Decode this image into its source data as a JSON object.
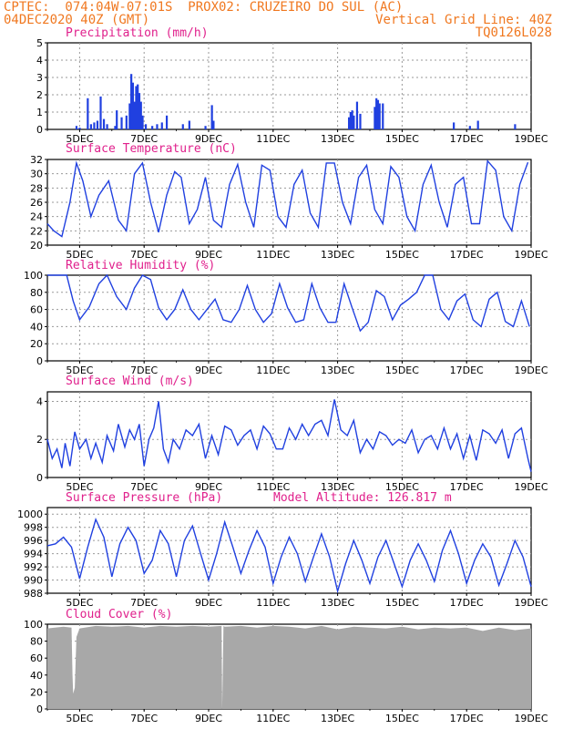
{
  "header": {
    "line1_left": "CPTEC:  074:04W-07:01S  PROX02: CRUZEIRO DO SUL (AC)",
    "line2_left": "04DEC2020 40Z (GMT)",
    "line2_right": "Vertical Grid Line: 40Z",
    "line3_right": "TQ0126L028"
  },
  "model_altitude": "Model Altitude: 126.817 m",
  "colors": {
    "line": "#2040e0",
    "title": "#e0208c",
    "header": "#f07820",
    "cloud": "#a8a8a8",
    "grid": "#9a9a9a"
  },
  "chart_data": [
    {
      "type": "bar",
      "title": "Precipitation (mm/h)",
      "ylim": [
        0,
        5
      ],
      "yticks": [
        "0",
        "1",
        "2",
        "3",
        "4",
        "5"
      ],
      "xticks": [
        "5DEC",
        "7DEC",
        "9DEC",
        "11DEC",
        "13DEC",
        "15DEC",
        "17DEC",
        "19DEC"
      ],
      "x_start_day": 4.0,
      "x_end_day": 19.0,
      "bars": [
        {
          "x": 4.9,
          "y": 0.2
        },
        {
          "x": 5.0,
          "y": 0.1
        },
        {
          "x": 5.25,
          "y": 1.8
        },
        {
          "x": 5.35,
          "y": 0.3
        },
        {
          "x": 5.45,
          "y": 0.4
        },
        {
          "x": 5.55,
          "y": 0.5
        },
        {
          "x": 5.65,
          "y": 1.9
        },
        {
          "x": 5.75,
          "y": 0.6
        },
        {
          "x": 5.85,
          "y": 0.3
        },
        {
          "x": 6.1,
          "y": 0.2
        },
        {
          "x": 6.15,
          "y": 1.1
        },
        {
          "x": 6.3,
          "y": 0.7
        },
        {
          "x": 6.45,
          "y": 0.8
        },
        {
          "x": 6.55,
          "y": 1.5
        },
        {
          "x": 6.6,
          "y": 3.2
        },
        {
          "x": 6.65,
          "y": 2.7
        },
        {
          "x": 6.7,
          "y": 1.6
        },
        {
          "x": 6.75,
          "y": 2.5
        },
        {
          "x": 6.8,
          "y": 2.6
        },
        {
          "x": 6.85,
          "y": 2.1
        },
        {
          "x": 6.9,
          "y": 1.6
        },
        {
          "x": 6.95,
          "y": 0.8
        },
        {
          "x": 7.05,
          "y": 0.3
        },
        {
          "x": 7.25,
          "y": 0.2
        },
        {
          "x": 7.4,
          "y": 0.3
        },
        {
          "x": 7.55,
          "y": 0.4
        },
        {
          "x": 7.7,
          "y": 0.8
        },
        {
          "x": 8.2,
          "y": 0.3
        },
        {
          "x": 8.4,
          "y": 0.5
        },
        {
          "x": 8.9,
          "y": 0.2
        },
        {
          "x": 9.1,
          "y": 1.4
        },
        {
          "x": 9.15,
          "y": 0.5
        },
        {
          "x": 13.35,
          "y": 0.7
        },
        {
          "x": 13.4,
          "y": 1.0
        },
        {
          "x": 13.45,
          "y": 1.1
        },
        {
          "x": 13.5,
          "y": 0.8
        },
        {
          "x": 13.6,
          "y": 1.6
        },
        {
          "x": 13.7,
          "y": 0.9
        },
        {
          "x": 14.15,
          "y": 1.3
        },
        {
          "x": 14.2,
          "y": 1.8
        },
        {
          "x": 14.25,
          "y": 1.7
        },
        {
          "x": 14.3,
          "y": 1.5
        },
        {
          "x": 14.4,
          "y": 1.5
        },
        {
          "x": 16.6,
          "y": 0.4
        },
        {
          "x": 17.1,
          "y": 0.2
        },
        {
          "x": 17.35,
          "y": 0.5
        },
        {
          "x": 18.5,
          "y": 0.3
        }
      ]
    },
    {
      "type": "line",
      "title": "Surface Temperature (nC)",
      "ylim": [
        20,
        32
      ],
      "yticks": [
        "20",
        "22",
        "24",
        "26",
        "28",
        "30",
        "32"
      ],
      "xticks": [
        "5DEC",
        "7DEC",
        "9DEC",
        "11DEC",
        "13DEC",
        "15DEC",
        "17DEC",
        "19DEC"
      ],
      "x_start_day": 4.0,
      "x_end_day": 19.0,
      "x": [
        4.0,
        4.2,
        4.45,
        4.7,
        4.9,
        5.1,
        5.35,
        5.6,
        5.9,
        6.2,
        6.45,
        6.7,
        6.95,
        7.2,
        7.45,
        7.7,
        7.95,
        8.15,
        8.4,
        8.65,
        8.9,
        9.15,
        9.4,
        9.65,
        9.9,
        10.15,
        10.4,
        10.65,
        10.9,
        11.15,
        11.4,
        11.65,
        11.9,
        12.15,
        12.4,
        12.65,
        12.9,
        13.15,
        13.4,
        13.65,
        13.9,
        14.15,
        14.4,
        14.65,
        14.9,
        15.15,
        15.4,
        15.65,
        15.9,
        16.15,
        16.4,
        16.65,
        16.9,
        17.15,
        17.4,
        17.65,
        17.9,
        18.15,
        18.4,
        18.65,
        18.9
      ],
      "y": [
        23.0,
        22.0,
        21.2,
        26.0,
        31.5,
        29.0,
        24.0,
        27.0,
        29.0,
        23.5,
        22.0,
        30.0,
        31.5,
        26.0,
        21.8,
        27.0,
        30.3,
        29.5,
        23.0,
        25.0,
        29.5,
        23.5,
        22.5,
        28.5,
        31.3,
        26.0,
        22.5,
        31.2,
        30.5,
        24.0,
        22.5,
        28.5,
        30.5,
        24.5,
        22.5,
        31.5,
        31.5,
        26.0,
        23.0,
        29.5,
        31.2,
        25.0,
        23.0,
        31.0,
        29.5,
        24.0,
        22.0,
        28.5,
        31.2,
        26.0,
        22.5,
        28.5,
        29.5,
        23.0,
        23.0,
        31.8,
        30.5,
        24.0,
        22.0,
        28.5,
        31.6
      ]
    },
    {
      "type": "line",
      "title": "Relative Humidity (%)",
      "ylim": [
        0,
        100
      ],
      "yticks": [
        "0",
        "20",
        "40",
        "60",
        "80",
        "100"
      ],
      "xticks": [
        "5DEC",
        "7DEC",
        "9DEC",
        "11DEC",
        "13DEC",
        "15DEC",
        "17DEC",
        "19DEC"
      ],
      "x_start_day": 4.0,
      "x_end_day": 19.0,
      "x": [
        4.0,
        4.3,
        4.6,
        4.8,
        5.0,
        5.3,
        5.6,
        5.85,
        6.15,
        6.45,
        6.7,
        6.95,
        7.2,
        7.45,
        7.7,
        7.95,
        8.2,
        8.45,
        8.7,
        8.95,
        9.2,
        9.45,
        9.7,
        9.95,
        10.2,
        10.45,
        10.7,
        10.95,
        11.2,
        11.45,
        11.7,
        11.95,
        12.2,
        12.45,
        12.7,
        12.95,
        13.2,
        13.45,
        13.7,
        13.95,
        14.2,
        14.45,
        14.7,
        14.95,
        15.2,
        15.45,
        15.7,
        15.95,
        16.2,
        16.45,
        16.7,
        16.95,
        17.2,
        17.45,
        17.7,
        17.95,
        18.2,
        18.45,
        18.7,
        18.95
      ],
      "y": [
        100,
        100,
        100,
        70,
        48,
        63,
        90,
        100,
        75,
        60,
        85,
        100,
        95,
        62,
        48,
        60,
        83,
        60,
        48,
        60,
        72,
        48,
        45,
        60,
        88,
        60,
        45,
        55,
        90,
        62,
        45,
        48,
        90,
        62,
        45,
        45,
        90,
        62,
        35,
        45,
        82,
        75,
        48,
        65,
        72,
        80,
        100,
        100,
        60,
        48,
        70,
        78,
        48,
        40,
        72,
        80,
        46,
        40,
        70,
        40
      ]
    },
    {
      "type": "line",
      "title": "Surface Wind (m/s)",
      "ylim": [
        0,
        4.5
      ],
      "yticks": [
        "0",
        "2",
        "4"
      ],
      "xticks": [
        "5DEC",
        "7DEC",
        "9DEC",
        "11DEC",
        "13DEC",
        "15DEC",
        "17DEC",
        "19DEC"
      ],
      "x_start_day": 4.0,
      "x_end_day": 19.0,
      "x": [
        4.0,
        4.15,
        4.3,
        4.45,
        4.55,
        4.7,
        4.85,
        5.0,
        5.2,
        5.35,
        5.5,
        5.7,
        5.85,
        6.05,
        6.2,
        6.4,
        6.55,
        6.7,
        6.85,
        7.0,
        7.15,
        7.3,
        7.45,
        7.6,
        7.75,
        7.9,
        8.1,
        8.3,
        8.5,
        8.7,
        8.9,
        9.1,
        9.3,
        9.5,
        9.7,
        9.9,
        10.1,
        10.3,
        10.5,
        10.7,
        10.9,
        11.1,
        11.3,
        11.5,
        11.7,
        11.9,
        12.1,
        12.3,
        12.5,
        12.7,
        12.9,
        13.1,
        13.3,
        13.5,
        13.7,
        13.9,
        14.1,
        14.3,
        14.5,
        14.7,
        14.9,
        15.1,
        15.3,
        15.5,
        15.7,
        15.9,
        16.1,
        16.3,
        16.5,
        16.7,
        16.9,
        17.1,
        17.3,
        17.5,
        17.7,
        17.9,
        18.1,
        18.3,
        18.5,
        18.7,
        18.9,
        19.0
      ],
      "y": [
        2.0,
        1.0,
        1.5,
        0.5,
        1.8,
        0.6,
        2.4,
        1.5,
        2.0,
        1.0,
        1.8,
        0.8,
        2.2,
        1.4,
        2.8,
        1.6,
        2.5,
        2.0,
        2.8,
        0.6,
        2.0,
        2.6,
        4.0,
        1.5,
        0.8,
        2.0,
        1.5,
        2.5,
        2.2,
        2.8,
        1.0,
        2.2,
        1.2,
        2.7,
        2.5,
        1.7,
        2.2,
        2.5,
        1.5,
        2.7,
        2.3,
        1.5,
        1.5,
        2.6,
        2.0,
        2.8,
        2.2,
        2.8,
        3.0,
        2.2,
        4.1,
        2.5,
        2.2,
        3.0,
        1.3,
        2.0,
        1.5,
        2.4,
        2.2,
        1.7,
        2.0,
        1.8,
        2.5,
        1.3,
        2.0,
        2.2,
        1.5,
        2.6,
        1.5,
        2.3,
        1.0,
        2.2,
        0.9,
        2.5,
        2.3,
        1.8,
        2.5,
        1.0,
        2.3,
        2.6,
        1.0,
        0.3
      ]
    },
    {
      "type": "line",
      "title": "Surface Pressure (hPa)",
      "ylim": [
        988,
        1001
      ],
      "yticks": [
        "988",
        "990",
        "992",
        "994",
        "996",
        "998",
        "1000"
      ],
      "xticks": [
        "5DEC",
        "7DEC",
        "9DEC",
        "11DEC",
        "13DEC",
        "15DEC",
        "17DEC",
        "19DEC"
      ],
      "x_start_day": 4.0,
      "x_end_day": 19.0,
      "x": [
        4.0,
        4.25,
        4.5,
        4.75,
        5.0,
        5.25,
        5.5,
        5.75,
        6.0,
        6.25,
        6.5,
        6.75,
        7.0,
        7.25,
        7.5,
        7.75,
        8.0,
        8.25,
        8.5,
        8.75,
        9.0,
        9.25,
        9.5,
        9.75,
        10.0,
        10.25,
        10.5,
        10.75,
        11.0,
        11.25,
        11.5,
        11.75,
        12.0,
        12.25,
        12.5,
        12.75,
        13.0,
        13.25,
        13.5,
        13.75,
        14.0,
        14.25,
        14.5,
        14.75,
        15.0,
        15.25,
        15.5,
        15.75,
        16.0,
        16.25,
        16.5,
        16.75,
        17.0,
        17.25,
        17.5,
        17.75,
        18.0,
        18.25,
        18.5,
        18.75,
        19.0
      ],
      "y": [
        995.2,
        995.5,
        996.5,
        995.0,
        990.2,
        995.0,
        999.2,
        996.5,
        990.5,
        995.5,
        998.0,
        996.0,
        991.0,
        993.0,
        997.5,
        995.5,
        990.5,
        996.0,
        998.2,
        994.0,
        990.0,
        994.0,
        998.8,
        995.0,
        991.0,
        994.5,
        997.5,
        995.0,
        989.5,
        993.5,
        996.5,
        994.0,
        989.8,
        993.5,
        997.0,
        993.5,
        988.3,
        992.5,
        996.0,
        993.0,
        989.5,
        993.5,
        996.0,
        992.5,
        989.0,
        993.0,
        995.5,
        993.0,
        989.8,
        994.5,
        997.5,
        994.0,
        989.5,
        993.0,
        995.5,
        993.5,
        989.2,
        992.5,
        996.0,
        993.5,
        989.0
      ]
    },
    {
      "type": "area",
      "title": "Cloud Cover (%)",
      "ylim": [
        0,
        100
      ],
      "yticks": [
        "0",
        "20",
        "40",
        "60",
        "80",
        "100"
      ],
      "xticks": [
        "5DEC",
        "7DEC",
        "9DEC",
        "11DEC",
        "13DEC",
        "15DEC",
        "17DEC",
        "19DEC"
      ],
      "x_start_day": 4.0,
      "x_end_day": 19.0,
      "x": [
        4.0,
        4.5,
        4.75,
        4.78,
        4.8,
        4.85,
        4.9,
        5.0,
        5.5,
        6.0,
        6.5,
        7.0,
        7.5,
        8.0,
        8.5,
        9.0,
        9.4,
        9.42,
        9.46,
        9.5,
        10.0,
        10.5,
        11.0,
        11.5,
        12.0,
        12.5,
        13.0,
        13.5,
        14.0,
        14.5,
        15.0,
        15.5,
        16.0,
        16.5,
        17.0,
        17.5,
        18.0,
        18.5,
        19.0
      ],
      "y": [
        95,
        97,
        96,
        40,
        18,
        25,
        85,
        95,
        98,
        97,
        98,
        96,
        98,
        97,
        98,
        97,
        98,
        0,
        98,
        97,
        98,
        96,
        98,
        97,
        95,
        98,
        94,
        97,
        96,
        95,
        97,
        94,
        96,
        95,
        96,
        92,
        96,
        93,
        95
      ]
    }
  ]
}
